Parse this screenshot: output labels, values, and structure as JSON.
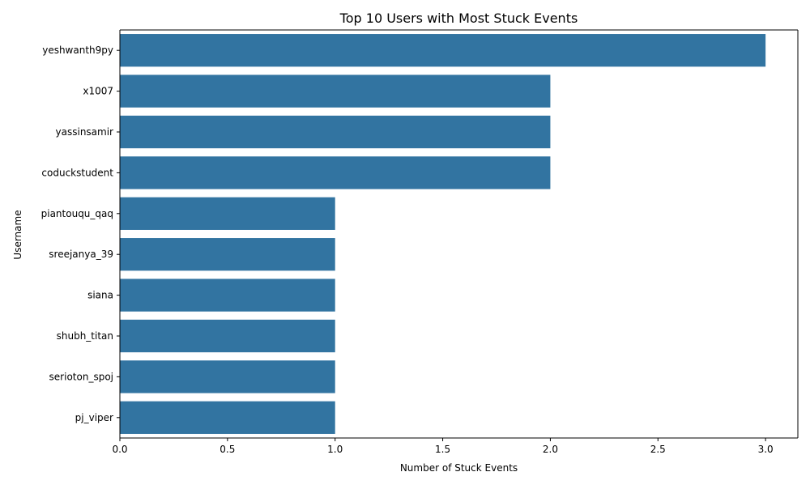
{
  "chart_data": {
    "type": "bar",
    "orientation": "horizontal",
    "title": "Top 10 Users with Most Stuck Events",
    "xlabel": "Number of Stuck Events",
    "ylabel": "Username",
    "categories": [
      "yeshwanth9py",
      "x1007",
      "yassinsamir",
      "coduckstudent",
      "piantouqu_qaq",
      "sreejanya_39",
      "siana",
      "shubh_titan",
      "serioton_spoj",
      "pj_viper"
    ],
    "values": [
      3,
      2,
      2,
      2,
      1,
      1,
      1,
      1,
      1,
      1
    ],
    "xlim": [
      0,
      3.15
    ],
    "xticks": [
      "0.0",
      "0.5",
      "1.0",
      "1.5",
      "2.0",
      "2.5",
      "3.0"
    ],
    "grid": false,
    "bar_color": "#3274a1"
  }
}
